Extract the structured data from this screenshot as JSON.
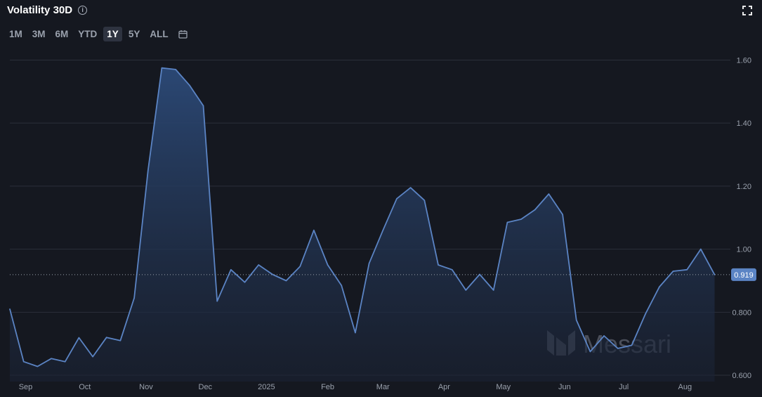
{
  "header": {
    "title": "Volatility 30D",
    "info_icon": "info-icon",
    "expand_icon": "fullscreen-icon"
  },
  "range_tabs": [
    {
      "label": "1M",
      "active": false
    },
    {
      "label": "3M",
      "active": false
    },
    {
      "label": "6M",
      "active": false
    },
    {
      "label": "YTD",
      "active": false
    },
    {
      "label": "1Y",
      "active": true
    },
    {
      "label": "5Y",
      "active": false
    },
    {
      "label": "ALL",
      "active": false
    }
  ],
  "calendar_icon": "calendar-icon",
  "watermark": "Messari",
  "colors": {
    "background": "#151820",
    "line": "#5b84c4",
    "fill_top": "#2c4a78",
    "grid": "#2b2f3a",
    "badge": "#5b84c4"
  },
  "chart_data": {
    "type": "area",
    "ylim": [
      0.58,
      1.63
    ],
    "yticks": [
      0.6,
      0.8,
      1.0,
      1.2,
      1.4,
      1.6
    ],
    "ytick_labels": [
      "0.600",
      "0.800",
      "1.00",
      "1.20",
      "1.40",
      "1.60"
    ],
    "xlim": [
      0,
      365
    ],
    "xtick_labels": [
      {
        "label": "Sep",
        "x": 8
      },
      {
        "label": "Oct",
        "x": 38
      },
      {
        "label": "Nov",
        "x": 69
      },
      {
        "label": "Dec",
        "x": 99
      },
      {
        "label": "2025",
        "x": 130
      },
      {
        "label": "Feb",
        "x": 161
      },
      {
        "label": "Mar",
        "x": 189
      },
      {
        "label": "Apr",
        "x": 220
      },
      {
        "label": "May",
        "x": 250
      },
      {
        "label": "Jun",
        "x": 281
      },
      {
        "label": "Jul",
        "x": 311
      },
      {
        "label": "Aug",
        "x": 342
      }
    ],
    "current_value": 0.919,
    "current_value_label": "0.919",
    "points": [
      [
        0,
        0.81
      ],
      [
        7,
        0.643
      ],
      [
        14,
        0.628
      ],
      [
        21,
        0.653
      ],
      [
        28,
        0.643
      ],
      [
        35,
        0.719
      ],
      [
        42,
        0.659
      ],
      [
        49,
        0.72
      ],
      [
        56,
        0.71
      ],
      [
        63,
        0.845
      ],
      [
        70,
        1.25
      ],
      [
        77,
        1.575
      ],
      [
        84,
        1.57
      ],
      [
        91,
        1.52
      ],
      [
        98,
        1.455
      ],
      [
        105,
        0.835
      ],
      [
        112,
        0.935
      ],
      [
        119,
        0.895
      ],
      [
        126,
        0.95
      ],
      [
        133,
        0.92
      ],
      [
        140,
        0.9
      ],
      [
        147,
        0.945
      ],
      [
        154,
        1.06
      ],
      [
        161,
        0.95
      ],
      [
        168,
        0.885
      ],
      [
        175,
        0.735
      ],
      [
        182,
        0.955
      ],
      [
        189,
        1.06
      ],
      [
        196,
        1.16
      ],
      [
        203,
        1.195
      ],
      [
        210,
        1.155
      ],
      [
        217,
        0.95
      ],
      [
        224,
        0.935
      ],
      [
        231,
        0.87
      ],
      [
        238,
        0.92
      ],
      [
        245,
        0.87
      ],
      [
        252,
        1.085
      ],
      [
        259,
        1.095
      ],
      [
        266,
        1.125
      ],
      [
        273,
        1.175
      ],
      [
        280,
        1.11
      ],
      [
        287,
        0.775
      ],
      [
        294,
        0.675
      ],
      [
        301,
        0.725
      ],
      [
        308,
        0.685
      ],
      [
        315,
        0.695
      ],
      [
        322,
        0.795
      ],
      [
        329,
        0.88
      ],
      [
        336,
        0.93
      ],
      [
        343,
        0.935
      ],
      [
        350,
        1.0
      ],
      [
        357,
        0.919
      ]
    ]
  }
}
